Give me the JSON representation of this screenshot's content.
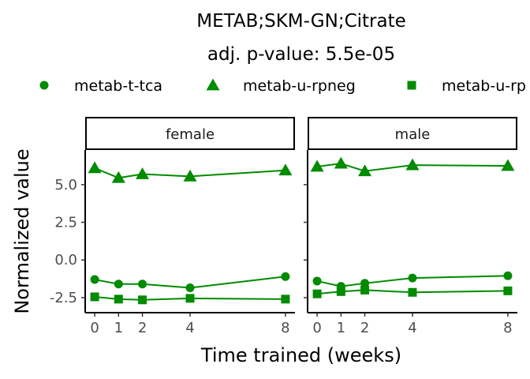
{
  "chart_data": {
    "type": "line",
    "title": "METAB;SKM-GN;Citrate",
    "subtitle": "adj. p-value: 5.5e-05",
    "xlabel": "Time trained (weeks)",
    "ylabel": "Normalized value",
    "color": "#008b00",
    "x_ticks": [
      0,
      1,
      2,
      4,
      8
    ],
    "y_ticks": [
      -2.5,
      0.0,
      2.5,
      5.0
    ],
    "y_tick_labels": [
      "-2.5",
      "0.0",
      "2.5",
      "5.0"
    ],
    "xlim": [
      -0.4,
      8.4
    ],
    "ylim": [
      -3.5,
      7.3
    ],
    "legend_position": "top",
    "legend": [
      {
        "name": "metab-t-tca",
        "shape": "circle"
      },
      {
        "name": "metab-u-rpneg",
        "shape": "triangle"
      },
      {
        "name": "metab-u-rp",
        "shape": "square"
      }
    ],
    "panels": [
      {
        "label": "female",
        "series": [
          {
            "name": "metab-t-tca",
            "x": [
              0,
              1,
              2,
              4,
              8
            ],
            "y": [
              -1.3,
              -1.6,
              -1.6,
              -1.85,
              -1.1
            ]
          },
          {
            "name": "metab-u-rpneg",
            "x": [
              0,
              1,
              2,
              4,
              8
            ],
            "y": [
              6.1,
              5.45,
              5.7,
              5.55,
              5.95
            ]
          },
          {
            "name": "metab-u-rp",
            "x": [
              0,
              1,
              2,
              4,
              8
            ],
            "y": [
              -2.45,
              -2.6,
              -2.65,
              -2.55,
              -2.6
            ]
          }
        ]
      },
      {
        "label": "male",
        "series": [
          {
            "name": "metab-t-tca",
            "x": [
              0,
              1,
              2,
              4,
              8
            ],
            "y": [
              -1.4,
              -1.75,
              -1.55,
              -1.2,
              -1.05
            ]
          },
          {
            "name": "metab-u-rpneg",
            "x": [
              0,
              1,
              2,
              4,
              8
            ],
            "y": [
              6.2,
              6.4,
              5.9,
              6.3,
              6.25
            ]
          },
          {
            "name": "metab-u-rp",
            "x": [
              0,
              1,
              2,
              4,
              8
            ],
            "y": [
              -2.25,
              -2.1,
              -2.0,
              -2.15,
              -2.05
            ]
          }
        ]
      }
    ]
  }
}
